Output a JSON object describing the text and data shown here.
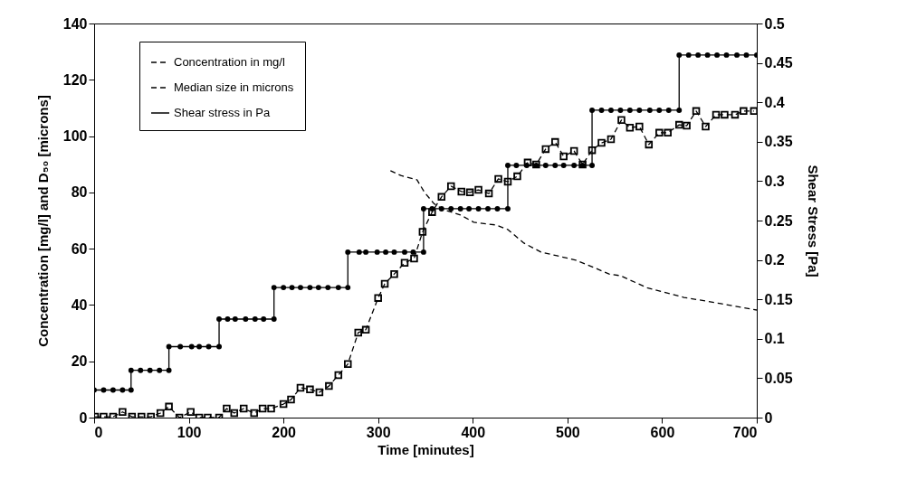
{
  "chart_data": {
    "type": "line",
    "xlabel": "Time [minutes]",
    "ylabel": "Concentration [mg/l] and D₅₀ [microns]",
    "y2label": "Shear Stress [Pa]",
    "xlim": [
      0,
      700
    ],
    "xticks": [
      0,
      100,
      200,
      300,
      400,
      500,
      600,
      700
    ],
    "ylim": [
      0,
      140
    ],
    "yticks": [
      0,
      20,
      40,
      60,
      80,
      100,
      120,
      140
    ],
    "y2lim": [
      0,
      0.5
    ],
    "y2ticks": [
      {
        "value": 0,
        "label": "0"
      },
      0.05,
      {
        "value": 0.1,
        "label": "0.1"
      },
      0.15,
      {
        "value": 0.2,
        "label": "0.2"
      },
      0.25,
      {
        "value": 0.3,
        "label": "0.3"
      },
      0.35,
      {
        "value": 0.4,
        "label": "0.4"
      },
      0.45,
      {
        "value": 0.5,
        "label": "0.5"
      }
    ],
    "grid": false,
    "legend": "top left",
    "series": [
      {
        "name": "Concentration in mg/l",
        "color": "#000000",
        "marker": "square",
        "line_style": "dashed",
        "x": [
          1,
          10,
          20,
          30,
          40,
          50,
          60,
          70,
          79,
          90,
          102,
          111,
          120,
          132,
          140,
          148,
          158,
          169,
          178,
          187,
          200,
          208,
          218,
          228,
          238,
          248,
          258,
          268,
          279,
          287,
          300,
          307,
          317,
          328,
          338,
          347,
          357,
          367,
          377,
          388,
          397,
          406,
          417,
          427,
          437,
          447,
          458,
          467,
          477,
          487,
          496,
          507,
          516,
          526,
          536,
          546,
          557,
          566,
          576,
          586,
          597,
          606,
          618,
          626,
          636,
          646,
          657,
          666,
          677,
          686,
          697
        ],
        "values": [
          0.3,
          0.3,
          0.3,
          2,
          0.3,
          0.3,
          0.3,
          1.6,
          3.9,
          0,
          2,
          0,
          0,
          0,
          3.2,
          1.6,
          3.2,
          1.6,
          3.2,
          3.2,
          4.8,
          6.4,
          10.6,
          10,
          9,
          11.2,
          15.1,
          19,
          30.2,
          31.2,
          42.5,
          47.5,
          51,
          55,
          56.5,
          66,
          73,
          78.4,
          82.2,
          80.3,
          80,
          80.9,
          79.6,
          84.8,
          83.8,
          85.7,
          90.6,
          89.9,
          95.4,
          97.9,
          92.8,
          94.7,
          89.9,
          95,
          97.6,
          98.9,
          105.7,
          103,
          103.4,
          97,
          101.2,
          101.2,
          104,
          103.7,
          108.9,
          103.4,
          107.6,
          107.6,
          107.6,
          108.9,
          108.9
        ]
      },
      {
        "name": "Median size in microns",
        "color": "#000000",
        "marker": "none",
        "line_style": "dashed",
        "x": [
          313,
          324,
          341,
          349,
          359,
          368,
          387,
          401,
          425,
          437,
          454,
          472,
          489,
          509,
          528,
          544,
          556,
          585,
          623,
          662,
          700
        ],
        "values": [
          87.7,
          86,
          84.5,
          80,
          76,
          74,
          72,
          69.4,
          68.4,
          66.8,
          62,
          58.8,
          57.5,
          55.9,
          53.3,
          51,
          50.4,
          46,
          42.7,
          40.5,
          38.2
        ]
      },
      {
        "name": "Shear stress in Pa",
        "color": "#000000",
        "marker": "circle",
        "line_style": "solid",
        "axis": "y2",
        "x": [
          0,
          10,
          20,
          30,
          39,
          39,
          49,
          59,
          69,
          79,
          79,
          91,
          103,
          111,
          121,
          132,
          132,
          141,
          149,
          160,
          170,
          179,
          190,
          190,
          200,
          209,
          218,
          228,
          237,
          247,
          258,
          268,
          268,
          280,
          287,
          299,
          308,
          317,
          328,
          337,
          348,
          348,
          357,
          367,
          377,
          387,
          396,
          406,
          416,
          426,
          437,
          437,
          446,
          457,
          467,
          477,
          487,
          496,
          507,
          516,
          526,
          526,
          536,
          546,
          556,
          566,
          576,
          587,
          597,
          607,
          618,
          618,
          628,
          638,
          648,
          658,
          668,
          679,
          689,
          700
        ],
        "values": [
          0.035,
          0.035,
          0.035,
          0.035,
          0.035,
          0.06,
          0.06,
          0.06,
          0.06,
          0.06,
          0.09,
          0.09,
          0.09,
          0.09,
          0.09,
          0.09,
          0.125,
          0.125,
          0.125,
          0.125,
          0.125,
          0.125,
          0.125,
          0.165,
          0.165,
          0.165,
          0.165,
          0.165,
          0.165,
          0.165,
          0.165,
          0.165,
          0.21,
          0.21,
          0.21,
          0.21,
          0.21,
          0.21,
          0.21,
          0.21,
          0.21,
          0.265,
          0.265,
          0.265,
          0.265,
          0.265,
          0.265,
          0.265,
          0.265,
          0.265,
          0.265,
          0.32,
          0.32,
          0.32,
          0.32,
          0.32,
          0.32,
          0.32,
          0.32,
          0.32,
          0.32,
          0.39,
          0.39,
          0.39,
          0.39,
          0.39,
          0.39,
          0.39,
          0.39,
          0.39,
          0.39,
          0.46,
          0.46,
          0.46,
          0.46,
          0.46,
          0.46,
          0.46,
          0.46,
          0.46
        ]
      }
    ]
  }
}
